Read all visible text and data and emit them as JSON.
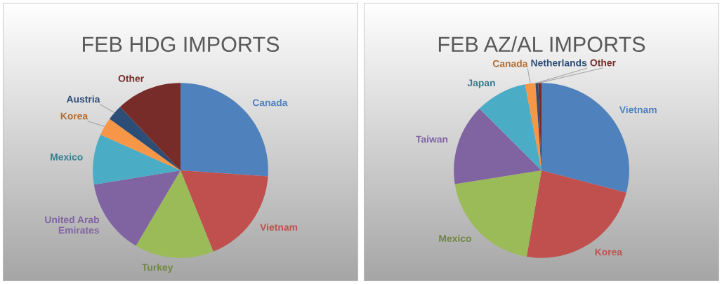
{
  "chart_data": [
    {
      "type": "pie",
      "title": "FEB HDG IMPORTS",
      "categories": [
        "Canada",
        "Vietnam",
        "Turkey",
        "United Arab\nEmirates",
        "Mexico",
        "Korea",
        "Austria",
        "Other"
      ],
      "values": [
        26.1,
        17.8,
        14.6,
        13.9,
        9.3,
        3.3,
        2.9,
        12.1
      ],
      "colors": [
        "#4f81bd",
        "#c0504d",
        "#9bbb59",
        "#8064a2",
        "#4bacc6",
        "#f79646",
        "#2c4d75",
        "#772c2a"
      ]
    },
    {
      "type": "pie",
      "title": "FEB AZ/AL IMPORTS",
      "categories": [
        "Vietnam",
        "Korea",
        "Mexico",
        "Taiwan",
        "Japan",
        "Canada",
        "Netherlands",
        "Other"
      ],
      "values": [
        29.1,
        23.6,
        19.8,
        15.0,
        9.5,
        1.9,
        0.5,
        0.6
      ],
      "colors": [
        "#4f81bd",
        "#c0504d",
        "#9bbb59",
        "#8064a2",
        "#4bacc6",
        "#f79646",
        "#2c4d75",
        "#772c2a"
      ]
    }
  ]
}
